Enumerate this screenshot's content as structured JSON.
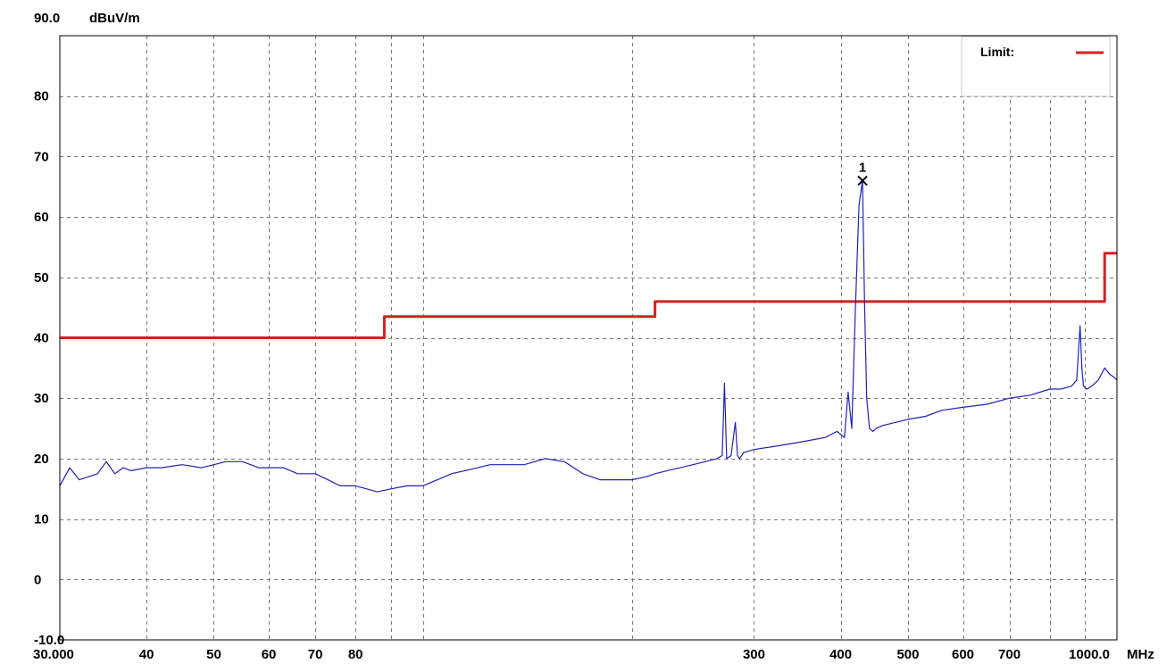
{
  "chart_data": {
    "type": "line",
    "x_scale": "log",
    "xlim": [
      30,
      1000
    ],
    "ylim": [
      -10,
      90
    ],
    "y_unit": "dBuV/m",
    "x_unit": "MHz",
    "y_ticks": [
      {
        "value": 90,
        "label": "90.0"
      },
      {
        "value": 80,
        "label": "80"
      },
      {
        "value": 70,
        "label": "70"
      },
      {
        "value": 60,
        "label": "60"
      },
      {
        "value": 50,
        "label": "50"
      },
      {
        "value": 40,
        "label": "40"
      },
      {
        "value": 30,
        "label": "30"
      },
      {
        "value": 20,
        "label": "20"
      },
      {
        "value": 10,
        "label": "10"
      },
      {
        "value": 0,
        "label": "0"
      },
      {
        "value": -10,
        "label": "-10.0"
      }
    ],
    "x_ticks": [
      {
        "value": 30,
        "label": "30.000"
      },
      {
        "value": 40,
        "label": "40"
      },
      {
        "value": 50,
        "label": "50"
      },
      {
        "value": 60,
        "label": "60"
      },
      {
        "value": 70,
        "label": "70"
      },
      {
        "value": 80,
        "label": "80"
      },
      {
        "value": 300,
        "label": "300"
      },
      {
        "value": 400,
        "label": "400"
      },
      {
        "value": 500,
        "label": "500"
      },
      {
        "value": 600,
        "label": "600"
      },
      {
        "value": 700,
        "label": "700"
      },
      {
        "value": 1000,
        "label": "1000.0"
      }
    ],
    "x_gridlines": [
      30,
      40,
      50,
      60,
      70,
      80,
      90,
      100,
      200,
      300,
      400,
      500,
      600,
      700,
      800,
      900,
      1000
    ],
    "grid": true,
    "legend": {
      "position": "top-right",
      "label": "Limit:",
      "color": "#d42020"
    },
    "series": [
      {
        "kind": "limit",
        "color": "#d42020",
        "x": [
          30,
          88,
          88,
          216,
          216,
          960,
          960,
          1000
        ],
        "y": [
          40,
          40,
          43.5,
          43.5,
          46,
          46,
          54,
          54
        ]
      },
      {
        "kind": "measurement",
        "color": "#1f22b0",
        "x": [
          30,
          31,
          32,
          33,
          34,
          35,
          36,
          37,
          38,
          40,
          42,
          45,
          48,
          50,
          52,
          55,
          58,
          60,
          63,
          66,
          70,
          73,
          76,
          80,
          83,
          86,
          90,
          95,
          100,
          105,
          110,
          115,
          120,
          125,
          130,
          135,
          140,
          145,
          150,
          160,
          170,
          180,
          190,
          200,
          210,
          216,
          225,
          235,
          245,
          255,
          265,
          270,
          272,
          274,
          278,
          282,
          284,
          286,
          290,
          300,
          320,
          340,
          360,
          380,
          395,
          405,
          410,
          415,
          420,
          425,
          430,
          433,
          436,
          440,
          445,
          450,
          460,
          480,
          500,
          530,
          560,
          600,
          650,
          700,
          750,
          800,
          830,
          860,
          875,
          885,
          890,
          895,
          905,
          920,
          940,
          960,
          975,
          990,
          1000
        ],
        "y": [
          15.5,
          18.5,
          16.5,
          17,
          17.5,
          19.5,
          17.5,
          18.5,
          18,
          18.5,
          18.5,
          19,
          18.5,
          19,
          19.5,
          19.5,
          18.5,
          18.5,
          18.5,
          17.5,
          17.5,
          16.5,
          15.5,
          15.5,
          15,
          14.5,
          15,
          15.5,
          15.5,
          16.5,
          17.5,
          18,
          18.5,
          19,
          19,
          19,
          19,
          19.5,
          20,
          19.5,
          17.5,
          16.5,
          16.5,
          16.5,
          17,
          17.5,
          18,
          18.5,
          19,
          19.5,
          20,
          20.5,
          32.5,
          20,
          20.5,
          26,
          20.5,
          20,
          21,
          21.5,
          22,
          22.5,
          23,
          23.5,
          24.5,
          23.5,
          31,
          25,
          45,
          62,
          66,
          45,
          30,
          25,
          24.5,
          25,
          25.5,
          26,
          26.5,
          27,
          28,
          28.5,
          29,
          30,
          30.5,
          31.5,
          31.5,
          32,
          33,
          42,
          35,
          32,
          31.5,
          32,
          33,
          35,
          34,
          33.5,
          33
        ]
      }
    ],
    "markers": [
      {
        "label": "1",
        "x": 430,
        "y": 66,
        "shape": "x"
      }
    ]
  }
}
